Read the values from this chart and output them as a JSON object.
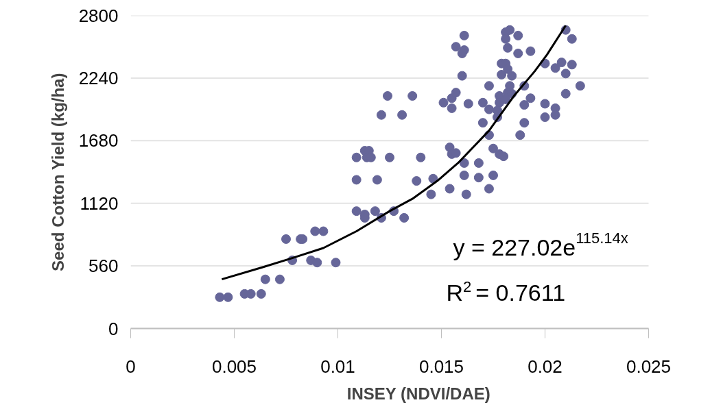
{
  "chart_data": {
    "type": "scatter",
    "xlabel": "INSEY (NDVI/DAE)",
    "ylabel": "Seed Cotton Yield (kg/ha)",
    "xlim": [
      0,
      0.025
    ],
    "xticks": [
      0,
      0.005,
      0.01,
      0.015,
      0.02,
      0.025
    ],
    "ylim": [
      0,
      2800
    ],
    "yticks": [
      0,
      560,
      1120,
      1680,
      2240,
      2800
    ],
    "grid": "y",
    "marker": "circle",
    "annotations": [
      "y = 227.02e$^{115.14x}$",
      "R$^{2}$ = 0.7611"
    ],
    "series": [
      {
        "color": "#666699",
        "x": [
          0.0043,
          0.0047,
          0.0055,
          0.0058,
          0.0063,
          0.0065,
          0.0072,
          0.0075,
          0.0078,
          0.0082,
          0.0083,
          0.0087,
          0.009,
          0.0089,
          0.0093,
          0.0099,
          0.0109,
          0.0113,
          0.0113,
          0.0118,
          0.0121,
          0.0127,
          0.0132,
          0.0109,
          0.0119,
          0.0138,
          0.0109,
          0.0113,
          0.0115,
          0.0114,
          0.0116,
          0.0125,
          0.014,
          0.0146,
          0.0145,
          0.0121,
          0.0124,
          0.0131,
          0.0136,
          0.0161,
          0.0157,
          0.0161,
          0.016,
          0.016,
          0.0173,
          0.0181,
          0.0183,
          0.0181,
          0.0182,
          0.0187,
          0.0187,
          0.0193,
          0.0179,
          0.0181,
          0.0179,
          0.0184,
          0.0182,
          0.0183,
          0.0178,
          0.0182,
          0.0184,
          0.0178,
          0.0181,
          0.0177,
          0.0177,
          0.019,
          0.0193,
          0.019,
          0.02,
          0.0205,
          0.0208,
          0.0213,
          0.021,
          0.0217,
          0.021,
          0.02,
          0.0205,
          0.0205,
          0.02,
          0.021,
          0.0213,
          0.0151,
          0.0155,
          0.0155,
          0.0157,
          0.0163,
          0.017,
          0.0173,
          0.017,
          0.0173,
          0.019,
          0.0188,
          0.0175,
          0.0178,
          0.018,
          0.0154,
          0.0155,
          0.0157,
          0.0161,
          0.0168,
          0.0161,
          0.0168,
          0.0175,
          0.0154,
          0.0162,
          0.0173
        ],
        "values": [
          280,
          280,
          310,
          310,
          310,
          440,
          440,
          800,
          610,
          800,
          800,
          610,
          590,
          870,
          870,
          590,
          1050,
          1020,
          990,
          1050,
          990,
          1050,
          990,
          1330,
          1330,
          1320,
          1530,
          1590,
          1590,
          1530,
          1530,
          1530,
          1530,
          1340,
          1200,
          1910,
          2080,
          1910,
          2080,
          2620,
          2520,
          2490,
          2460,
          2260,
          2170,
          2650,
          2670,
          2590,
          2510,
          2620,
          2460,
          2480,
          2370,
          2370,
          2270,
          2260,
          2320,
          2170,
          2080,
          2110,
          2100,
          2020,
          2050,
          1950,
          1890,
          2170,
          2060,
          2000,
          2370,
          2330,
          2380,
          2360,
          2280,
          2170,
          2100,
          2010,
          1970,
          1910,
          1890,
          2670,
          2590,
          2020,
          1970,
          2060,
          2110,
          2010,
          2020,
          1960,
          1840,
          1730,
          1840,
          1730,
          1610,
          1560,
          1540,
          1620,
          1560,
          1570,
          1480,
          1480,
          1370,
          1350,
          1370,
          1250,
          1200,
          1250
        ]
      },
      {
        "type": "line",
        "color": "#000000",
        "marker": "none",
        "line_style": "solid",
        "x": [
          0.0044,
          0.0064,
          0.0078,
          0.0093,
          0.0109,
          0.0125,
          0.0136,
          0.0148,
          0.0158,
          0.0173,
          0.0185,
          0.0195,
          0.0201,
          0.021
        ],
        "values": [
          440,
          550,
          630,
          720,
          870,
          1050,
          1160,
          1320,
          1480,
          1770,
          2080,
          2300,
          2450,
          2710
        ]
      }
    ]
  }
}
